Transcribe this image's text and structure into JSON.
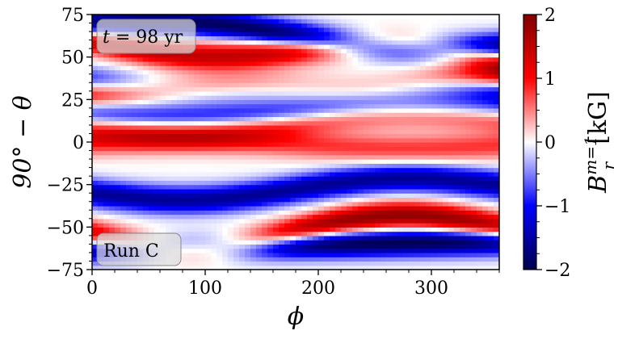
{
  "chart_data": {
    "type": "heatmap",
    "title": "",
    "xlabel": "ϕ",
    "ylabel": "90° − θ",
    "xlim": [
      0,
      360
    ],
    "ylim": [
      -75,
      75
    ],
    "x_ticks": [
      0,
      100,
      200,
      300
    ],
    "y_ticks": [
      -75,
      -50,
      -25,
      0,
      25,
      50,
      75
    ],
    "colorbar": {
      "label": "B_r^{m=1} [kG]",
      "label_main": "B",
      "label_sub": "r",
      "label_sup": "m=1",
      "label_unit": "[kG]",
      "range": [
        -2,
        2
      ],
      "ticks": [
        -2,
        -1,
        0,
        1,
        2
      ],
      "tick_labels": [
        "−2",
        "−1",
        "0",
        "1",
        "2"
      ],
      "colormap": "seismic",
      "colors": [
        "#00004c",
        "#0000ff",
        "#ffffff",
        "#ff0000",
        "#800000"
      ]
    },
    "annotations": [
      {
        "text": "t = 98 yr",
        "italic_part": "t",
        "rest": " = 98 yr",
        "position": "top-left"
      },
      {
        "text": "Run C",
        "position": "bottom-left"
      }
    ],
    "bands": [
      {
        "lat_start": 70,
        "lat_end": 56,
        "drift_per_360": 4,
        "value": -1.9
      },
      {
        "lat_start": 60,
        "lat_end": 48,
        "drift_per_360": -6,
        "value": 1.5
      },
      {
        "lat_start": 35,
        "lat_end": 32,
        "drift_per_360": -3,
        "value": -1.5
      },
      {
        "lat_start": 30,
        "lat_end": 38,
        "drift_per_360": 0,
        "value": 1.7
      },
      {
        "lat_start": 16,
        "lat_end": 20,
        "drift_per_360": -2,
        "value": -1.0
      },
      {
        "lat_start": 8,
        "lat_end": 14,
        "drift_per_360": -4,
        "value": 1.0
      },
      {
        "lat_start": 0,
        "lat_end": -2,
        "drift_per_360": 2,
        "value": 0.8
      },
      {
        "lat_start": -30,
        "lat_end": -25,
        "drift_per_360": -5,
        "value": -1.6
      },
      {
        "lat_start": -55,
        "lat_end": -50,
        "drift_per_360": -8,
        "value": 1.9
      },
      {
        "lat_start": -62,
        "lat_end": -58,
        "drift_per_360": 0,
        "value": -2.0
      }
    ]
  }
}
